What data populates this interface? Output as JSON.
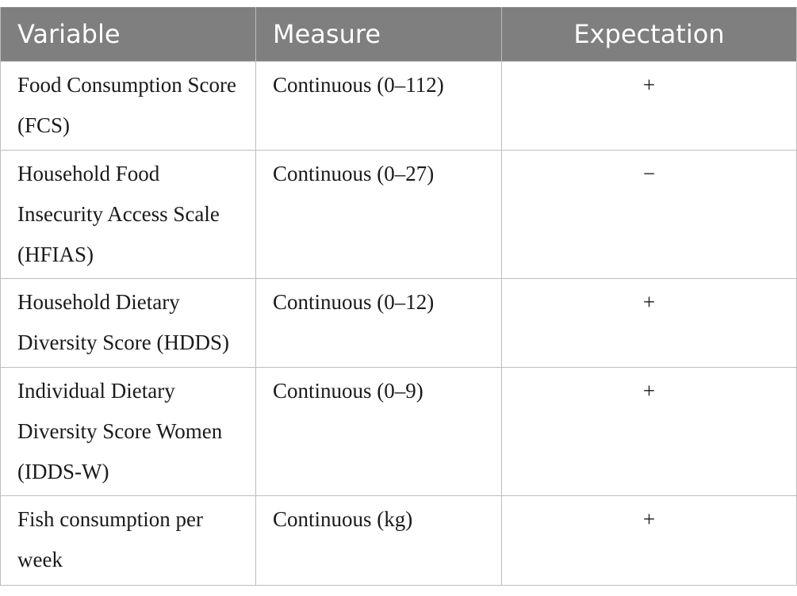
{
  "table": {
    "headers": [
      "Variable",
      "Measure",
      "Expectation"
    ],
    "rows": [
      {
        "variable": "Food Consumption Score (FCS)",
        "measure": "Continuous (0–112)",
        "expectation": "+"
      },
      {
        "variable": "Household Food Insecurity Access Scale (HFIAS)",
        "measure": "Continuous (0–27)",
        "expectation": "−"
      },
      {
        "variable": "Household Dietary Diversity Score (HDDS)",
        "measure": "Continuous (0–12)",
        "expectation": "+"
      },
      {
        "variable": "Individual Dietary Diversity Score Women (IDDS-W)",
        "measure": "Continuous (0–9)",
        "expectation": "+"
      },
      {
        "variable": "Fish consumption per week",
        "measure": "Continuous (kg)",
        "expectation": "+"
      }
    ]
  }
}
